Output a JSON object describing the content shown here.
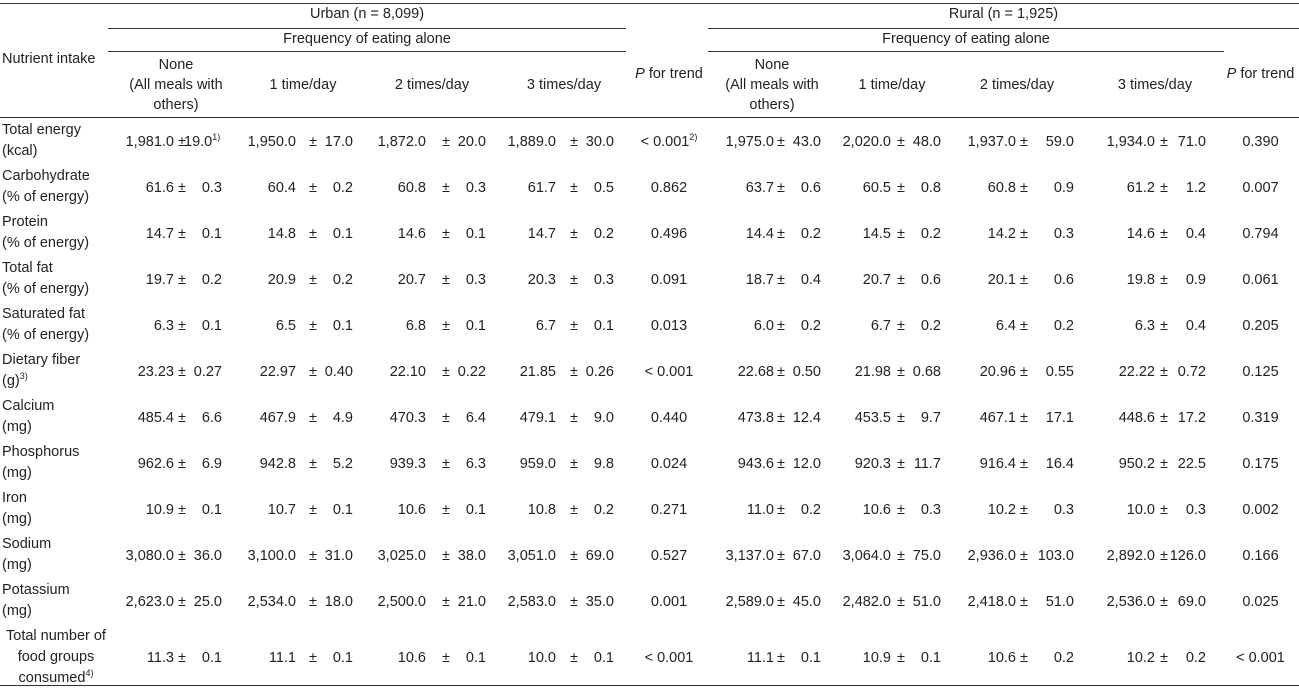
{
  "table": {
    "row_header": "Nutrient intake",
    "groups": [
      {
        "label": "Urban (n = 8,099)",
        "subheader": "Frequency of eating alone",
        "p_label_italic": "P",
        "p_label_rest": " for trend"
      },
      {
        "label": "Rural (n = 1,925)",
        "subheader": "Frequency of eating alone",
        "p_label_italic": "P",
        "p_label_rest": " for trend"
      }
    ],
    "columns": [
      {
        "lines": [
          "None",
          "(All meals with",
          "others)"
        ]
      },
      {
        "lines": [
          "1 time/day"
        ]
      },
      {
        "lines": [
          "2 times/day"
        ]
      },
      {
        "lines": [
          "3 times/day"
        ]
      }
    ],
    "rows": [
      {
        "label": [
          "Total energy",
          "(kcal)"
        ],
        "label_sup": "",
        "urban": [
          [
            "1,981.0",
            "19.0",
            "1)"
          ],
          [
            "1,950.0",
            "17.0",
            ""
          ],
          [
            "1,872.0",
            "20.0",
            ""
          ],
          [
            "1,889.0",
            "30.0",
            ""
          ]
        ],
        "urban_p": "< 0.001",
        "urban_p_sup": "2)",
        "rural": [
          [
            "1,975.0",
            "43.0"
          ],
          [
            "2,020.0",
            "48.0"
          ],
          [
            "1,937.0",
            "59.0"
          ],
          [
            "1,934.0",
            "71.0"
          ]
        ],
        "rural_p": "0.390"
      },
      {
        "label": [
          "Carbohydrate",
          "(% of energy)"
        ],
        "label_sup": "",
        "urban": [
          [
            "61.6",
            "0.3",
            ""
          ],
          [
            "60.4",
            "0.2",
            ""
          ],
          [
            "60.8",
            "0.3",
            ""
          ],
          [
            "61.7",
            "0.5",
            ""
          ]
        ],
        "urban_p": "0.862",
        "urban_p_sup": "",
        "rural": [
          [
            "63.7",
            "0.6"
          ],
          [
            "60.5",
            "0.8"
          ],
          [
            "60.8",
            "0.9"
          ],
          [
            "61.2",
            "1.2"
          ]
        ],
        "rural_p": "0.007"
      },
      {
        "label": [
          "Protein",
          "(% of energy)"
        ],
        "label_sup": "",
        "urban": [
          [
            "14.7",
            "0.1",
            ""
          ],
          [
            "14.8",
            "0.1",
            ""
          ],
          [
            "14.6",
            "0.1",
            ""
          ],
          [
            "14.7",
            "0.2",
            ""
          ]
        ],
        "urban_p": "0.496",
        "urban_p_sup": "",
        "rural": [
          [
            "14.4",
            "0.2"
          ],
          [
            "14.5",
            "0.2"
          ],
          [
            "14.2",
            "0.3"
          ],
          [
            "14.6",
            "0.4"
          ]
        ],
        "rural_p": "0.794"
      },
      {
        "label": [
          "Total fat",
          "(% of energy)"
        ],
        "label_sup": "",
        "urban": [
          [
            "19.7",
            "0.2",
            ""
          ],
          [
            "20.9",
            "0.2",
            ""
          ],
          [
            "20.7",
            "0.3",
            ""
          ],
          [
            "20.3",
            "0.3",
            ""
          ]
        ],
        "urban_p": "0.091",
        "urban_p_sup": "",
        "rural": [
          [
            "18.7",
            "0.4"
          ],
          [
            "20.7",
            "0.6"
          ],
          [
            "20.1",
            "0.6"
          ],
          [
            "19.8",
            "0.9"
          ]
        ],
        "rural_p": "0.061"
      },
      {
        "label": [
          "Saturated fat",
          "(% of energy)"
        ],
        "label_sup": "",
        "urban": [
          [
            "6.3",
            "0.1",
            ""
          ],
          [
            "6.5",
            "0.1",
            ""
          ],
          [
            "6.8",
            "0.1",
            ""
          ],
          [
            "6.7",
            "0.1",
            ""
          ]
        ],
        "urban_p": "0.013",
        "urban_p_sup": "",
        "rural": [
          [
            "6.0",
            "0.2"
          ],
          [
            "6.7",
            "0.2"
          ],
          [
            "6.4",
            "0.2"
          ],
          [
            "6.3",
            "0.4"
          ]
        ],
        "rural_p": "0.205"
      },
      {
        "label": [
          "Dietary fiber",
          "(g)"
        ],
        "label_sup": "3)",
        "urban": [
          [
            "23.23",
            "0.27",
            ""
          ],
          [
            "22.97",
            "0.40",
            ""
          ],
          [
            "22.10",
            "0.22",
            ""
          ],
          [
            "21.85",
            "0.26",
            ""
          ]
        ],
        "urban_p": "< 0.001",
        "urban_p_sup": "",
        "rural": [
          [
            "22.68",
            "0.50"
          ],
          [
            "21.98",
            "0.68"
          ],
          [
            "20.96",
            "0.55"
          ],
          [
            "22.22",
            "0.72"
          ]
        ],
        "rural_p": "0.125"
      },
      {
        "label": [
          "Calcium",
          "(mg)"
        ],
        "label_sup": "",
        "urban": [
          [
            "485.4",
            "6.6",
            ""
          ],
          [
            "467.9",
            "4.9",
            ""
          ],
          [
            "470.3",
            "6.4",
            ""
          ],
          [
            "479.1",
            "9.0",
            ""
          ]
        ],
        "urban_p": "0.440",
        "urban_p_sup": "",
        "rural": [
          [
            "473.8",
            "12.4"
          ],
          [
            "453.5",
            "9.7"
          ],
          [
            "467.1",
            "17.1"
          ],
          [
            "448.6",
            "17.2"
          ]
        ],
        "rural_p": "0.319"
      },
      {
        "label": [
          "Phosphorus",
          "(mg)"
        ],
        "label_sup": "",
        "urban": [
          [
            "962.6",
            "6.9",
            ""
          ],
          [
            "942.8",
            "5.2",
            ""
          ],
          [
            "939.3",
            "6.3",
            ""
          ],
          [
            "959.0",
            "9.8",
            ""
          ]
        ],
        "urban_p": "0.024",
        "urban_p_sup": "",
        "rural": [
          [
            "943.6",
            "12.0"
          ],
          [
            "920.3",
            "11.7"
          ],
          [
            "916.4",
            "16.4"
          ],
          [
            "950.2",
            "22.5"
          ]
        ],
        "rural_p": "0.175"
      },
      {
        "label": [
          "Iron",
          "(mg)"
        ],
        "label_sup": "",
        "urban": [
          [
            "10.9",
            "0.1",
            ""
          ],
          [
            "10.7",
            "0.1",
            ""
          ],
          [
            "10.6",
            "0.1",
            ""
          ],
          [
            "10.8",
            "0.2",
            ""
          ]
        ],
        "urban_p": "0.271",
        "urban_p_sup": "",
        "rural": [
          [
            "11.0",
            "0.2"
          ],
          [
            "10.6",
            "0.3"
          ],
          [
            "10.2",
            "0.3"
          ],
          [
            "10.0",
            "0.3"
          ]
        ],
        "rural_p": "0.002"
      },
      {
        "label": [
          "Sodium",
          "(mg)"
        ],
        "label_sup": "",
        "urban": [
          [
            "3,080.0",
            "36.0",
            ""
          ],
          [
            "3,100.0",
            "31.0",
            ""
          ],
          [
            "3,025.0",
            "38.0",
            ""
          ],
          [
            "3,051.0",
            "69.0",
            ""
          ]
        ],
        "urban_p": "0.527",
        "urban_p_sup": "",
        "rural": [
          [
            "3,137.0",
            "67.0"
          ],
          [
            "3,064.0",
            "75.0"
          ],
          [
            "2,936.0",
            "103.0"
          ],
          [
            "2,892.0",
            "126.0"
          ]
        ],
        "rural_p": "0.166"
      },
      {
        "label": [
          "Potassium",
          "(mg)"
        ],
        "label_sup": "",
        "urban": [
          [
            "2,623.0",
            "25.0",
            ""
          ],
          [
            "2,534.0",
            "18.0",
            ""
          ],
          [
            "2,500.0",
            "21.0",
            ""
          ],
          [
            "2,583.0",
            "35.0",
            ""
          ]
        ],
        "urban_p": "0.001",
        "urban_p_sup": "",
        "rural": [
          [
            "2,589.0",
            "45.0"
          ],
          [
            "2,482.0",
            "51.0"
          ],
          [
            "2,418.0",
            "51.0"
          ],
          [
            "2,536.0",
            "69.0"
          ]
        ],
        "rural_p": "0.025"
      },
      {
        "label": [
          "Total number of",
          "food groups",
          "consumed"
        ],
        "label_sup": "4)",
        "urban": [
          [
            "11.3",
            "0.1",
            ""
          ],
          [
            "11.1",
            "0.1",
            ""
          ],
          [
            "10.6",
            "0.1",
            ""
          ],
          [
            "10.0",
            "0.1",
            ""
          ]
        ],
        "urban_p": "< 0.001",
        "urban_p_sup": "",
        "rural": [
          [
            "11.1",
            "0.1"
          ],
          [
            "10.9",
            "0.1"
          ],
          [
            "10.6",
            "0.2"
          ],
          [
            "10.2",
            "0.2"
          ]
        ],
        "rural_p": "< 0.001"
      }
    ]
  }
}
